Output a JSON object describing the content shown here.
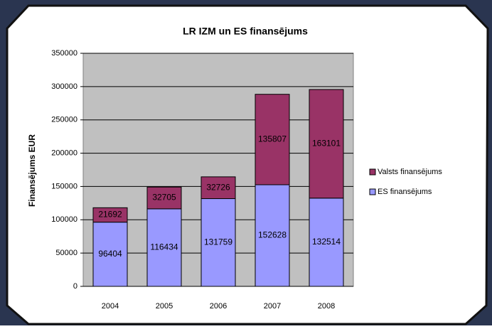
{
  "chart_data": {
    "type": "stacked_bar",
    "title": "LR IZM un ES finansējums",
    "y_label": "Finansējums EUR",
    "categories": [
      "2004",
      "2005",
      "2006",
      "2007",
      "2008"
    ],
    "series": [
      {
        "name": "ES finansējums",
        "color": "#9999ff",
        "values": [
          96404,
          116434,
          131759,
          152628,
          132514
        ]
      },
      {
        "name": "Valsts finansējums",
        "color": "#993366",
        "values": [
          21692,
          32705,
          32726,
          135807,
          163101
        ]
      }
    ],
    "ylim": [
      0,
      350000
    ],
    "yticks": [
      0,
      50000,
      100000,
      150000,
      200000,
      250000,
      300000,
      350000
    ],
    "grid": true,
    "legend": "right"
  }
}
